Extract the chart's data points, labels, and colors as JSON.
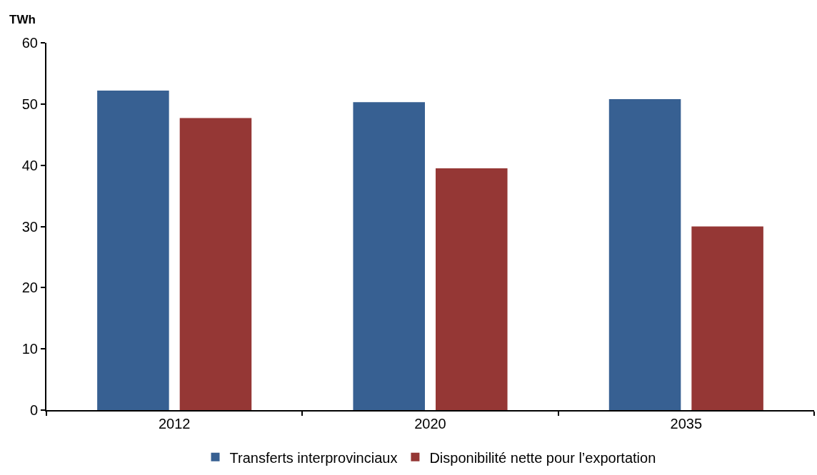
{
  "chart_data": {
    "type": "bar",
    "ylabel": "TWh",
    "categories": [
      "2012",
      "2020",
      "2035"
    ],
    "series": [
      {
        "name": "Transferts interprovinciaux",
        "color": "#376092",
        "values": [
          52.2,
          50.3,
          50.8
        ]
      },
      {
        "name": "Disponibilité nette pour l’exportation",
        "color": "#953735",
        "values": [
          47.7,
          39.5,
          30.0
        ]
      }
    ],
    "ylim": [
      0,
      60
    ],
    "yticks": [
      0,
      10,
      20,
      30,
      40,
      50,
      60
    ],
    "grid": false,
    "legend": "bottom"
  }
}
